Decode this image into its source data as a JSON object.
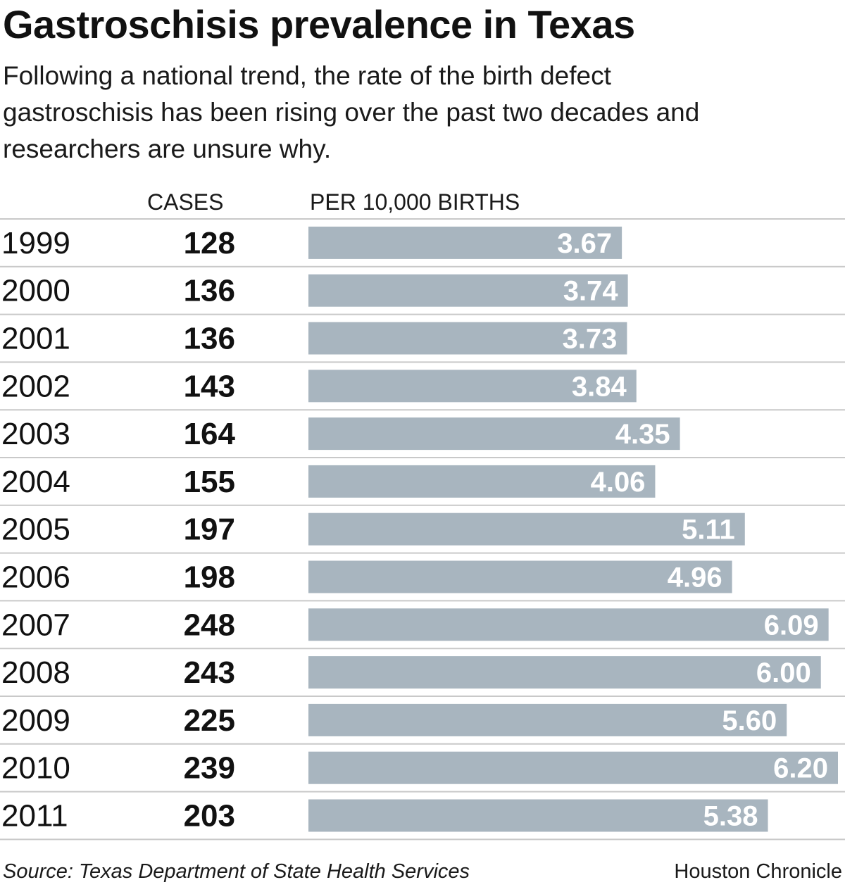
{
  "header": {
    "title": "Gastroschisis prevalence in Texas",
    "subtitle": "Following a national trend, the rate of the birth defect gastroschisis has been rising over the past two decades and researchers are unsure why."
  },
  "columns": {
    "cases_label": "CASES",
    "rate_label": "PER 10,000 BIRTHS"
  },
  "chart_data": {
    "type": "bar",
    "orientation": "horizontal",
    "title": "Gastroschisis prevalence in Texas",
    "categories": [
      "1999",
      "2000",
      "2001",
      "2002",
      "2003",
      "2004",
      "2005",
      "2006",
      "2007",
      "2008",
      "2009",
      "2010",
      "2011"
    ],
    "cases": [
      128,
      136,
      136,
      143,
      164,
      155,
      197,
      198,
      248,
      243,
      225,
      239,
      203
    ],
    "values": [
      3.67,
      3.74,
      3.73,
      3.84,
      4.35,
      4.06,
      5.11,
      4.96,
      6.09,
      6.0,
      5.6,
      6.2,
      5.38
    ],
    "value_labels": [
      "3.67",
      "3.74",
      "3.73",
      "3.84",
      "4.35",
      "4.06",
      "5.11",
      "4.96",
      "6.09",
      "6.00",
      "5.60",
      "6.20",
      "5.38"
    ],
    "xlim": [
      0,
      6.2
    ],
    "bar_color": "#a8b5bf",
    "label_color": "#ffffff",
    "divider_color": "#c9c9c9"
  },
  "footer": {
    "source": "Source: Texas Department of State Health Services",
    "credit": "Houston Chronicle"
  }
}
